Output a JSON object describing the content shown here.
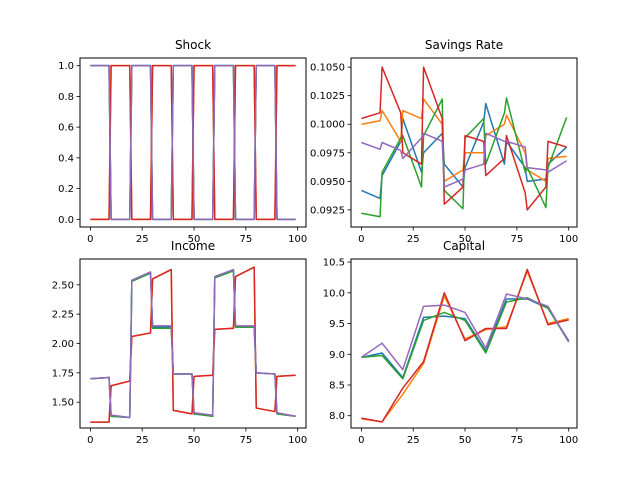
{
  "figure": {
    "background": "#ffffff"
  },
  "colors": [
    "#1f77b4",
    "#ff7f0e",
    "#2ca02c",
    "#d62728",
    "#9467bd"
  ],
  "chart_data": [
    {
      "type": "line",
      "title": "Shock",
      "xlim": [
        -5,
        104
      ],
      "ylim": [
        -0.05,
        1.05
      ],
      "xticks": [
        0,
        25,
        50,
        75,
        100
      ],
      "yticks": [
        0.0,
        0.2,
        0.4,
        0.6,
        0.8,
        1.0
      ],
      "ytick_labels": [
        "0.0",
        "0.2",
        "0.4",
        "0.6",
        "0.8",
        "1.0"
      ],
      "x": [
        0,
        9,
        10,
        19,
        20,
        29,
        30,
        39,
        40,
        49,
        50,
        59,
        60,
        69,
        70,
        79,
        80,
        89,
        90,
        99
      ],
      "series": [
        {
          "values": [
            1,
            1,
            0,
            0,
            1,
            1,
            0,
            0,
            1,
            1,
            0,
            0,
            1,
            1,
            0,
            0,
            1,
            1,
            0,
            0
          ]
        },
        {
          "values": [
            0,
            0,
            1,
            1,
            0,
            0,
            1,
            1,
            0,
            0,
            1,
            1,
            0,
            0,
            1,
            1,
            0,
            0,
            1,
            1
          ]
        },
        {
          "values": [
            1,
            1,
            0,
            0,
            1,
            1,
            0,
            0,
            1,
            1,
            0,
            0,
            1,
            1,
            0,
            0,
            1,
            1,
            0,
            0
          ]
        },
        {
          "values": [
            0,
            0,
            1,
            1,
            0,
            0,
            1,
            1,
            0,
            0,
            1,
            1,
            0,
            0,
            1,
            1,
            0,
            0,
            1,
            1
          ]
        },
        {
          "values": [
            1,
            1,
            0,
            0,
            1,
            1,
            0,
            0,
            1,
            1,
            0,
            0,
            1,
            1,
            0,
            0,
            1,
            1,
            0,
            0
          ]
        }
      ]
    },
    {
      "type": "line",
      "title": "Savings Rate",
      "xlim": [
        -5,
        104
      ],
      "ylim": [
        0.091,
        0.1058
      ],
      "xticks": [
        0,
        25,
        50,
        75,
        100
      ],
      "yticks": [
        0.0925,
        0.095,
        0.0975,
        0.1,
        0.1025,
        0.105
      ],
      "ytick_labels": [
        "0.0925",
        "0.0950",
        "0.0975",
        "0.1000",
        "0.1025",
        "0.1050"
      ],
      "x": [
        0,
        9,
        10,
        19,
        20,
        29,
        30,
        39,
        40,
        49,
        50,
        59,
        60,
        69,
        70,
        79,
        80,
        89,
        90,
        99
      ],
      "series": [
        {
          "values": [
            0.0942,
            0.0935,
            0.0955,
            0.0985,
            0.1005,
            0.0958,
            0.0975,
            0.0992,
            0.0965,
            0.0945,
            0.0962,
            0.1002,
            0.1018,
            0.0965,
            0.0985,
            0.0962,
            0.095,
            0.0952,
            0.0965,
            0.098
          ]
        },
        {
          "values": [
            0.1,
            0.1003,
            0.1012,
            0.0985,
            0.1012,
            0.1005,
            0.1022,
            0.1,
            0.095,
            0.096,
            0.0975,
            0.0975,
            0.099,
            0.1,
            0.1008,
            0.0975,
            0.096,
            0.095,
            0.097,
            0.0972
          ]
        },
        {
          "values": [
            0.0922,
            0.0919,
            0.0958,
            0.0988,
            0.099,
            0.0945,
            0.099,
            0.1022,
            0.0942,
            0.0926,
            0.0988,
            0.1005,
            0.0965,
            0.101,
            0.1023,
            0.0958,
            0.0962,
            0.0927,
            0.0962,
            0.1006
          ]
        },
        {
          "values": [
            0.1005,
            0.101,
            0.105,
            0.101,
            0.0975,
            0.0965,
            0.105,
            0.1005,
            0.093,
            0.0945,
            0.099,
            0.0985,
            0.0955,
            0.097,
            0.099,
            0.094,
            0.0925,
            0.0945,
            0.0985,
            0.098
          ]
        },
        {
          "values": [
            0.0984,
            0.0978,
            0.0984,
            0.0977,
            0.097,
            0.0988,
            0.0992,
            0.0985,
            0.0945,
            0.0952,
            0.096,
            0.0965,
            0.0992,
            0.0985,
            0.0985,
            0.098,
            0.0962,
            0.096,
            0.0958,
            0.0968
          ]
        }
      ]
    },
    {
      "type": "line",
      "title": "Income",
      "xlim": [
        -5,
        104
      ],
      "ylim": [
        1.28,
        2.72
      ],
      "xticks": [
        0,
        25,
        50,
        75,
        100
      ],
      "yticks": [
        1.5,
        1.75,
        2.0,
        2.25,
        2.5
      ],
      "ytick_labels": [
        "1.50",
        "1.75",
        "2.00",
        "2.25",
        "2.50"
      ],
      "x": [
        0,
        9,
        10,
        19,
        20,
        29,
        30,
        39,
        40,
        49,
        50,
        59,
        60,
        69,
        70,
        79,
        80,
        89,
        90,
        99
      ],
      "series": [
        {
          "values": [
            1.7,
            1.71,
            1.38,
            1.37,
            2.53,
            2.6,
            2.14,
            2.14,
            1.74,
            1.74,
            1.4,
            1.38,
            2.56,
            2.62,
            2.14,
            2.14,
            1.75,
            1.74,
            1.4,
            1.38
          ]
        },
        {
          "values": [
            1.33,
            1.33,
            1.64,
            1.68,
            2.06,
            2.09,
            2.55,
            2.63,
            1.43,
            1.4,
            1.72,
            1.73,
            2.12,
            2.13,
            2.57,
            2.65,
            1.45,
            1.42,
            1.72,
            1.73
          ]
        },
        {
          "values": [
            1.7,
            1.71,
            1.38,
            1.37,
            2.53,
            2.6,
            2.13,
            2.13,
            1.74,
            1.74,
            1.4,
            1.38,
            2.56,
            2.62,
            2.14,
            2.14,
            1.75,
            1.74,
            1.4,
            1.38
          ]
        },
        {
          "values": [
            1.33,
            1.33,
            1.64,
            1.68,
            2.06,
            2.09,
            2.55,
            2.63,
            1.43,
            1.4,
            1.72,
            1.73,
            2.12,
            2.13,
            2.57,
            2.65,
            1.45,
            1.42,
            1.72,
            1.73
          ]
        },
        {
          "values": [
            1.7,
            1.71,
            1.39,
            1.37,
            2.54,
            2.61,
            2.15,
            2.15,
            1.74,
            1.74,
            1.41,
            1.39,
            2.57,
            2.63,
            2.15,
            2.15,
            1.75,
            1.74,
            1.41,
            1.38
          ]
        }
      ]
    },
    {
      "type": "line",
      "title": "Capital",
      "xlim": [
        -5,
        104
      ],
      "ylim": [
        7.8,
        10.55
      ],
      "xticks": [
        0,
        25,
        50,
        75,
        100
      ],
      "yticks": [
        8.0,
        8.5,
        9.0,
        9.5,
        10.0,
        10.5
      ],
      "ytick_labels": [
        "8.0",
        "8.5",
        "9.0",
        "9.5",
        "10.0",
        "10.5"
      ],
      "x": [
        0,
        10,
        20,
        30,
        40,
        50,
        60,
        70,
        80,
        90,
        100
      ],
      "series": [
        {
          "values": [
            8.95,
            9.02,
            8.62,
            9.6,
            9.62,
            9.58,
            9.05,
            9.9,
            9.9,
            9.75,
            9.22
          ]
        },
        {
          "values": [
            7.95,
            7.9,
            8.35,
            8.85,
            9.95,
            9.25,
            9.4,
            9.45,
            10.35,
            9.5,
            9.58
          ]
        },
        {
          "values": [
            8.95,
            8.98,
            8.6,
            9.55,
            9.68,
            9.55,
            9.02,
            9.85,
            9.92,
            9.75,
            9.2
          ]
        },
        {
          "values": [
            7.96,
            7.9,
            8.45,
            8.88,
            10.0,
            9.22,
            9.42,
            9.42,
            10.38,
            9.48,
            9.56
          ]
        },
        {
          "values": [
            8.95,
            9.18,
            8.75,
            9.78,
            9.8,
            9.68,
            9.1,
            9.98,
            9.9,
            9.78,
            9.2
          ]
        }
      ]
    }
  ]
}
